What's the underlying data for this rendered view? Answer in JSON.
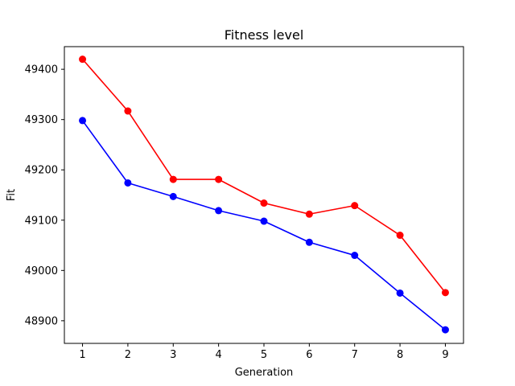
{
  "chart_data": {
    "type": "line",
    "title": "Fitness level",
    "xlabel": "Generation",
    "ylabel": "Fit",
    "x": [
      1,
      2,
      3,
      4,
      5,
      6,
      7,
      8,
      9
    ],
    "xlim": [
      0.6,
      9.4
    ],
    "ylim": [
      48855,
      49445
    ],
    "xticks": [
      1,
      2,
      3,
      4,
      5,
      6,
      7,
      8,
      9
    ],
    "yticks": [
      48900,
      49000,
      49100,
      49200,
      49300,
      49400
    ],
    "grid": false,
    "legend": "none",
    "series": [
      {
        "color": "#ff0000",
        "marker": "circle",
        "values": [
          49420,
          49317,
          49181,
          49181,
          49134,
          49112,
          49129,
          49070,
          48956
        ]
      },
      {
        "color": "#0000ff",
        "marker": "circle",
        "values": [
          49298,
          49174,
          49147,
          49119,
          49098,
          49056,
          49030,
          48955,
          48882
        ]
      }
    ]
  }
}
